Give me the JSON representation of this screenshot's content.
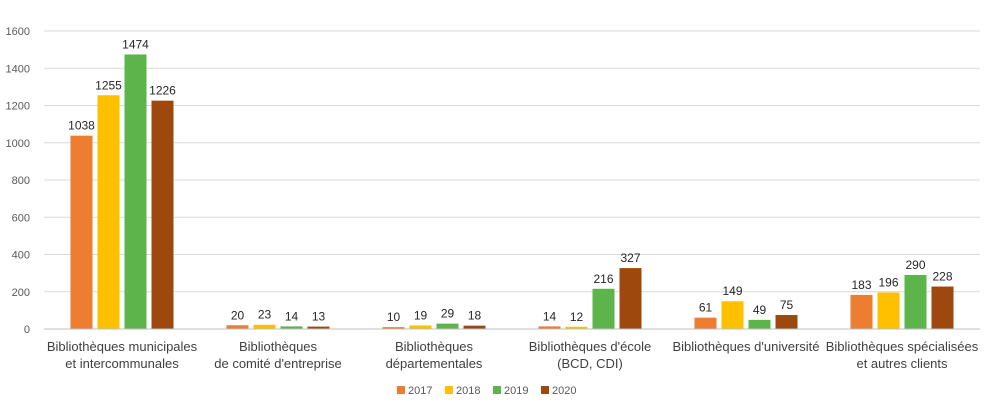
{
  "chart_data": {
    "type": "bar",
    "categories": [
      [
        "Bibliothèques municipales",
        "et intercommunales"
      ],
      [
        "Bibliothèques",
        "de comité d'entreprise"
      ],
      [
        "Bibliothèques",
        "départementales"
      ],
      [
        "Bibliothèques d'école",
        "(BCD, CDI)"
      ],
      [
        "Bibliothèques d'université"
      ],
      [
        "Bibliothèques spécialisées",
        "et autres clients"
      ]
    ],
    "series": [
      {
        "name": "2017",
        "color": "#ED7D31",
        "values": [
          1038,
          20,
          10,
          14,
          61,
          183
        ]
      },
      {
        "name": "2018",
        "color": "#FFC000",
        "values": [
          1255,
          23,
          19,
          12,
          149,
          196
        ]
      },
      {
        "name": "2019",
        "color": "#5DB44A",
        "values": [
          1474,
          14,
          29,
          216,
          49,
          290
        ]
      },
      {
        "name": "2020",
        "color": "#9E480E",
        "values": [
          1226,
          13,
          18,
          327,
          75,
          228
        ]
      }
    ],
    "y_ticks": [
      "0",
      "200",
      "400",
      "600",
      "800",
      "1000",
      "1200",
      "1400",
      "1600"
    ],
    "ylim": [
      0,
      1600
    ],
    "grid": true,
    "legend_position": "bottom",
    "title": "",
    "xlabel": "",
    "ylabel": ""
  }
}
